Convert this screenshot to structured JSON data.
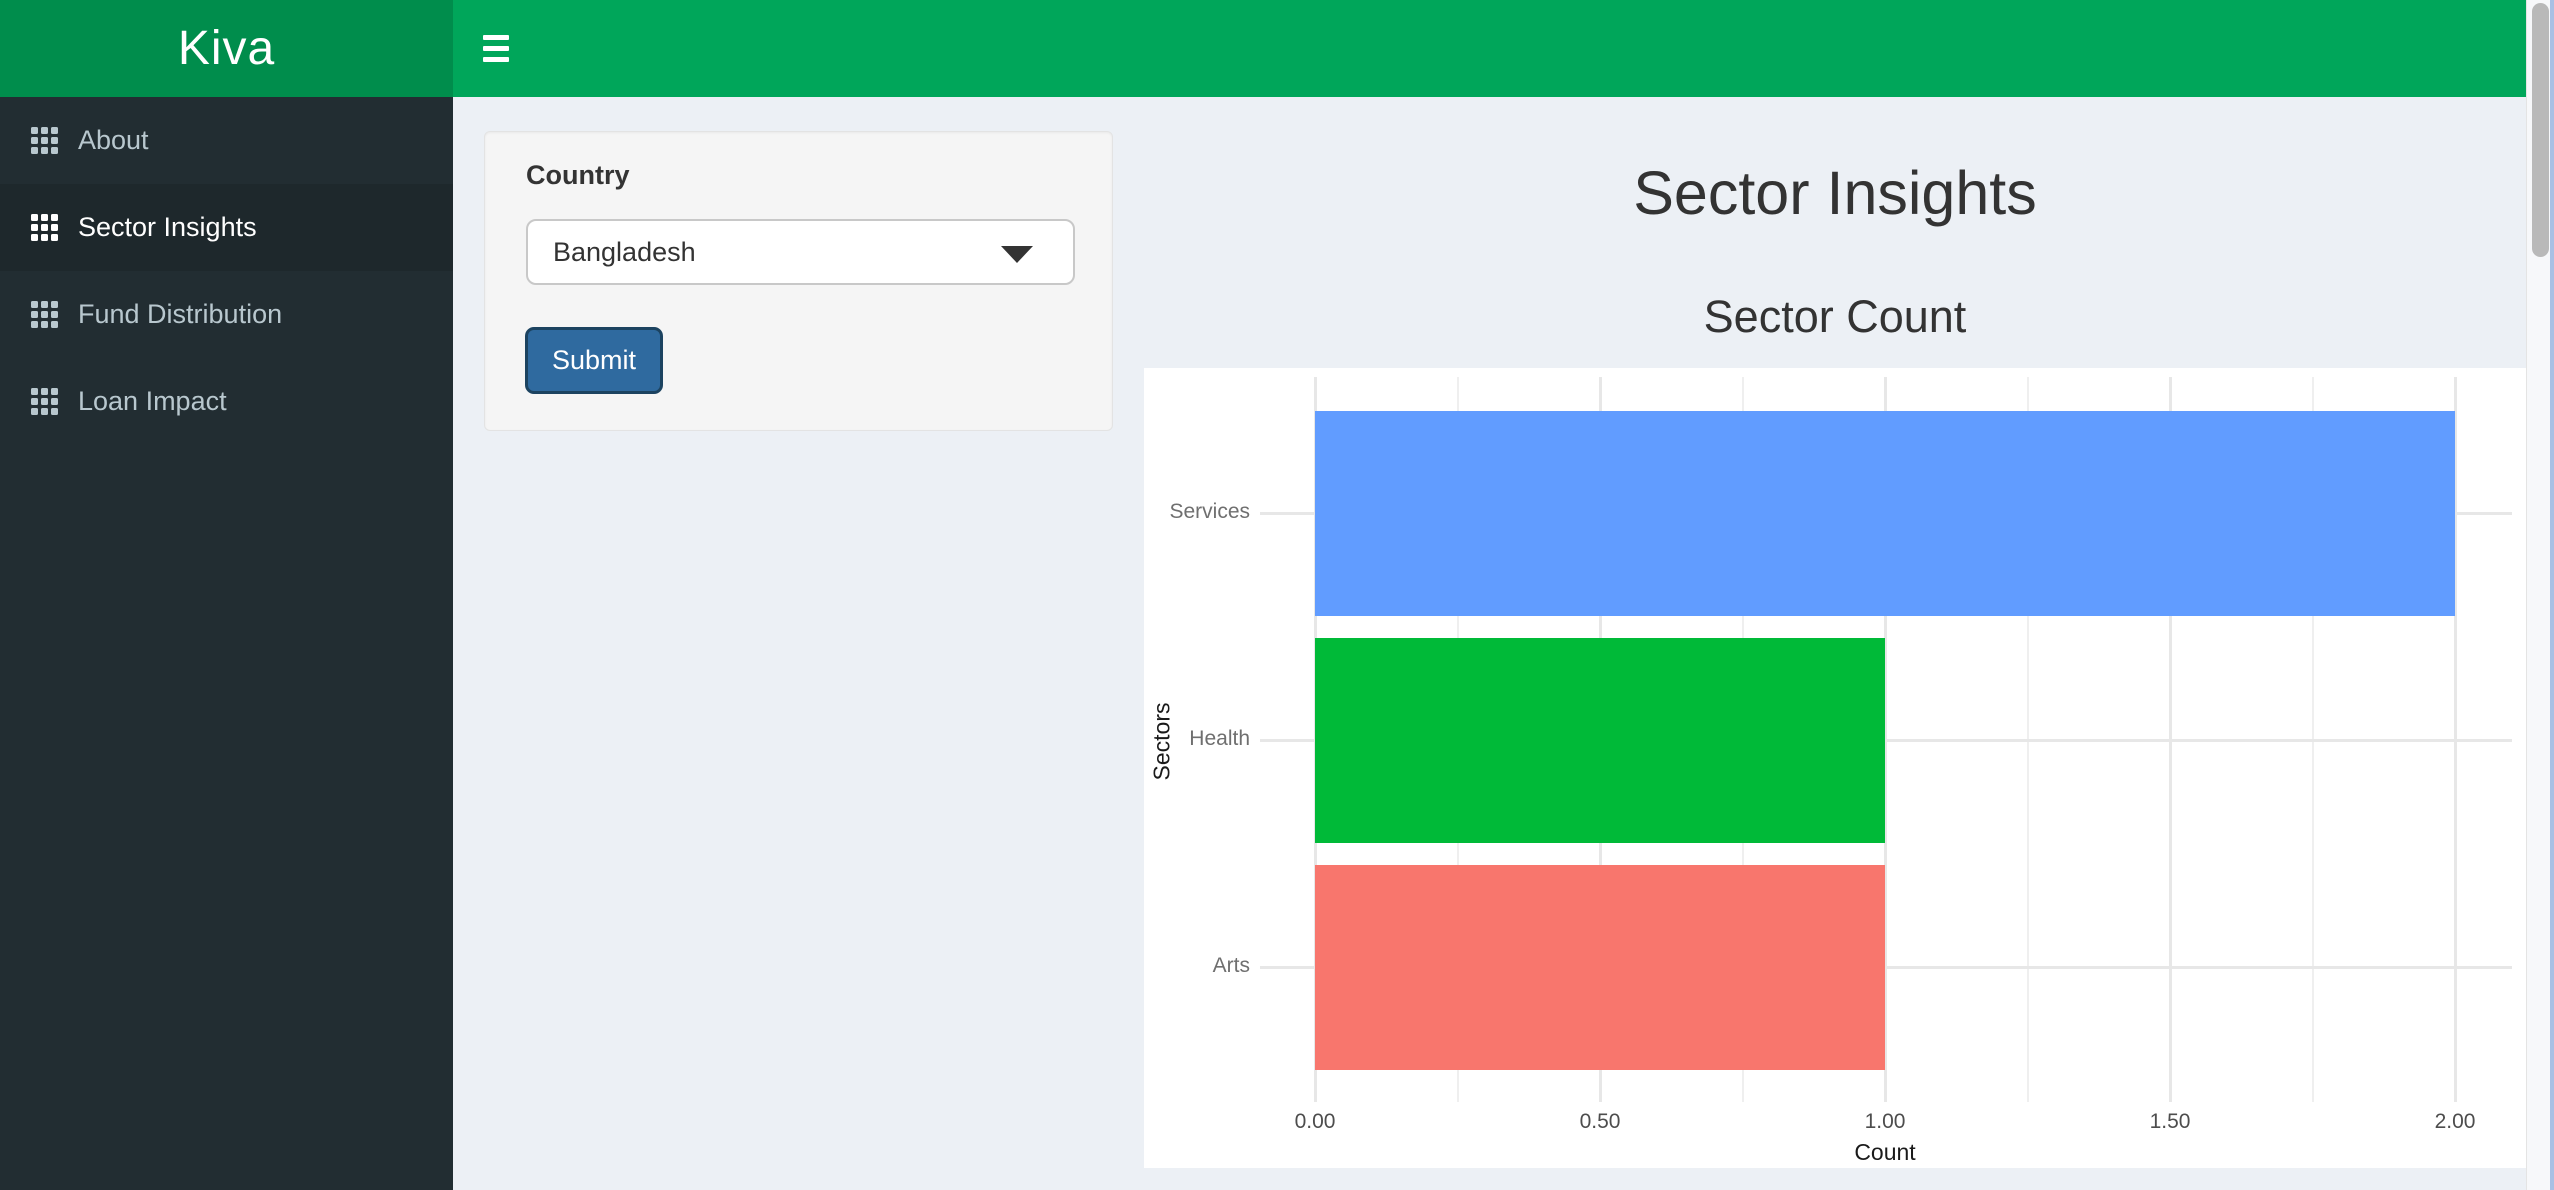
{
  "app": {
    "brand": "Kiva"
  },
  "header": {
    "hamburger_icon": "menu-icon"
  },
  "sidebar": {
    "items": [
      {
        "label": "About",
        "icon": "th-grid-icon",
        "active": false
      },
      {
        "label": "Sector Insights",
        "icon": "th-grid-icon",
        "active": true
      },
      {
        "label": "Fund Distribution",
        "icon": "th-grid-icon",
        "active": false
      },
      {
        "label": "Loan Impact",
        "icon": "th-grid-icon",
        "active": false
      }
    ]
  },
  "controls": {
    "country_label": "Country",
    "country_value": "Bangladesh",
    "submit_label": "Submit"
  },
  "main": {
    "title": "Sector Insights"
  },
  "chart_data": {
    "type": "bar",
    "orientation": "horizontal",
    "title": "Sector Count",
    "categories": [
      "Services",
      "Health",
      "Arts"
    ],
    "values": [
      2,
      1,
      1
    ],
    "bar_colors": [
      "#619CFF",
      "#00BA38",
      "#F8766D"
    ],
    "xlabel": "Count",
    "ylabel": "Sectors",
    "xlim": [
      0,
      2
    ],
    "x_major_ticks": [
      0,
      0.5,
      1,
      1.5,
      2
    ],
    "x_tick_labels": [
      "0.00",
      "0.50",
      "1.00",
      "1.50",
      "2.00"
    ],
    "x_minor_step": 0.25,
    "grid": true,
    "legend": "none",
    "background": "#ffffff"
  },
  "colors": {
    "logo_bg": "#008d4c",
    "navbar_bg": "#00a65a",
    "sidebar_bg": "#222d32",
    "sidebar_active_bg": "#1e282c",
    "sidebar_text": "#b8c7ce",
    "content_bg": "#ecf0f5",
    "panel_bg": "#f5f5f5",
    "button_bg": "#2f6a9f"
  }
}
